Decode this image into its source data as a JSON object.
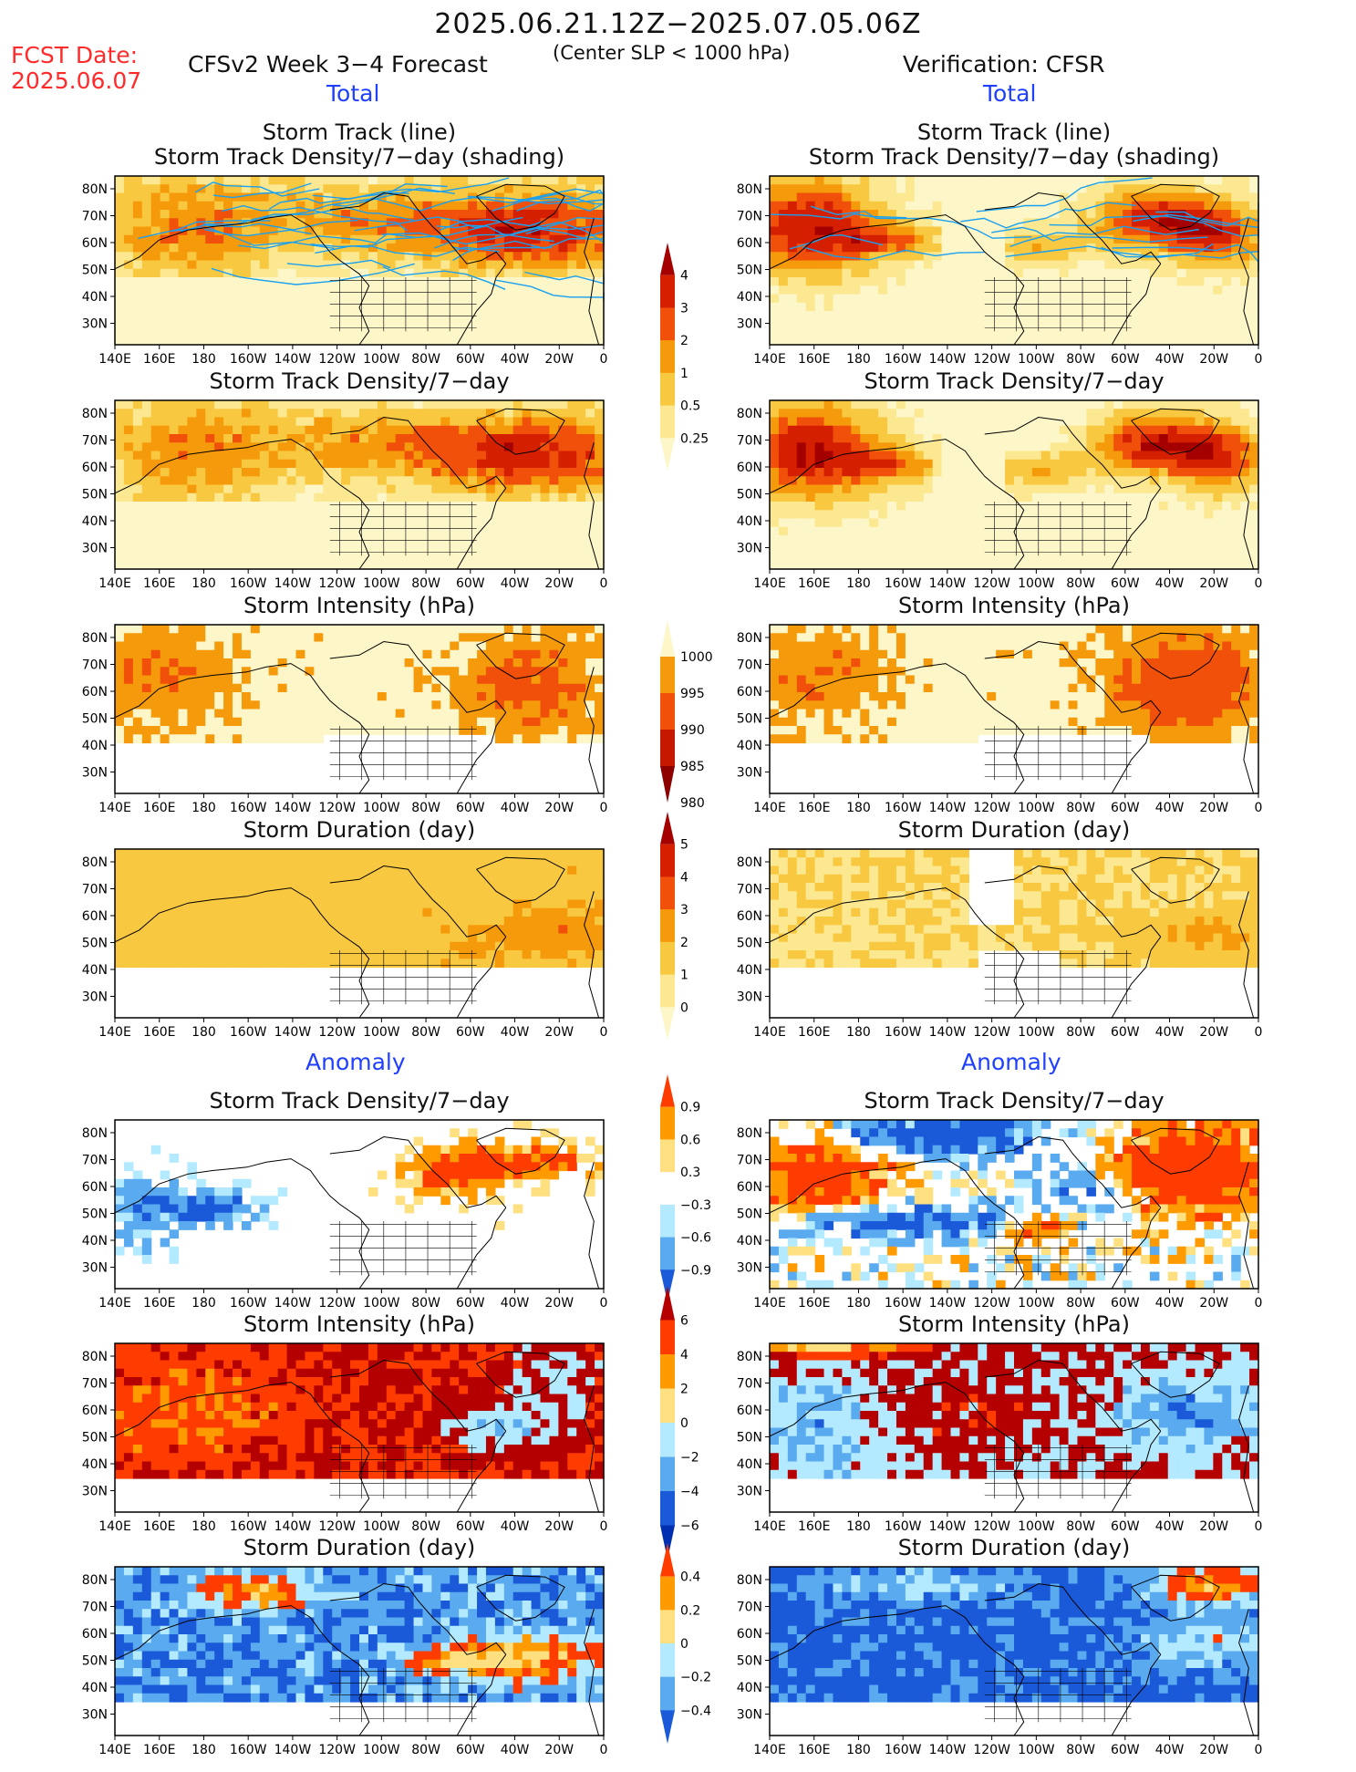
{
  "header": {
    "title": "2025.06.21.12Z−2025.07.05.06Z",
    "fcst_label": "FCST Date:",
    "fcst_date": "2025.06.07",
    "left_model": "CFSv2 Week 3−4 Forecast",
    "condition": "(Center SLP < 1000 hPa)",
    "right_model": "Verification: CFSR"
  },
  "sections": {
    "total": "Total",
    "anomaly": "Anomaly"
  },
  "axes": {
    "lat_ticks": [
      "80N",
      "70N",
      "60N",
      "50N",
      "40N",
      "30N"
    ],
    "lon_ticks": [
      "140E",
      "160E",
      "180",
      "160W",
      "140W",
      "120W",
      "100W",
      "80W",
      "60W",
      "40W",
      "20W",
      "0"
    ]
  },
  "panels": {
    "row1_line1": "Storm Track (line)",
    "row1_line2": "Storm Track Density/7−day (shading)",
    "row2": "Storm Track Density/7−day",
    "row3": "Storm Intensity (hPa)",
    "row4": "Storm Duration (day)",
    "row5": "Storm Track Density/7−day",
    "row6": "Storm Intensity (hPa)",
    "row7": "Storm Duration (day)"
  },
  "colorbars": {
    "density": {
      "labels": [
        "4",
        "3",
        "2",
        "1",
        "0.5",
        "0.25"
      ],
      "colors": [
        "#a50000",
        "#d42000",
        "#f0500a",
        "#f59a0a",
        "#f8c840",
        "#fbe890",
        "#fdf6c8"
      ]
    },
    "intensity": {
      "labels": [
        "1000",
        "995",
        "990",
        "985",
        "980"
      ],
      "colors": [
        "#fdf6c8",
        "#f59a0a",
        "#f0500a",
        "#c41800",
        "#8c0000"
      ]
    },
    "duration": {
      "labels": [
        "5",
        "4",
        "3",
        "2",
        "1",
        "0"
      ],
      "colors": [
        "#a50000",
        "#d42000",
        "#f0500a",
        "#f59a0a",
        "#f8c840",
        "#fbe890",
        "#fdf6c8"
      ]
    },
    "density_anom": {
      "labels": [
        "0.9",
        "0.6",
        "0.3",
        "−0.3",
        "−0.6",
        "−0.9"
      ],
      "colors": [
        "#ff3c00",
        "#ff9a00",
        "#ffe080",
        "#ffffff",
        "#b4eaff",
        "#5aaaf0",
        "#1a5ad8"
      ]
    },
    "intensity_anom": {
      "labels": [
        "6",
        "4",
        "2",
        "0",
        "−2",
        "−4",
        "−6"
      ],
      "colors": [
        "#b40000",
        "#ff3c00",
        "#ff9a00",
        "#ffe080",
        "#b4eaff",
        "#5aaaf0",
        "#1a5ad8",
        "#0030b0"
      ]
    },
    "duration_anom": {
      "labels": [
        "0.4",
        "0.2",
        "0",
        "−0.2",
        "−0.4"
      ],
      "colors": [
        "#ff3c00",
        "#ff9a00",
        "#ffe080",
        "#b4eaff",
        "#5aaaf0",
        "#1a5ad8"
      ]
    }
  },
  "chart_data": {
    "type": "heatmap",
    "title": "2025.06.21.12Z−2025.07.05.06Z",
    "columns": [
      "CFSv2 Week 3−4 Forecast",
      "Verification: CFSR"
    ],
    "xlabel": "",
    "ylabel": "",
    "xlim": [
      "140E",
      "0"
    ],
    "ylim": [
      "25N",
      "85N"
    ],
    "grid": false
  }
}
